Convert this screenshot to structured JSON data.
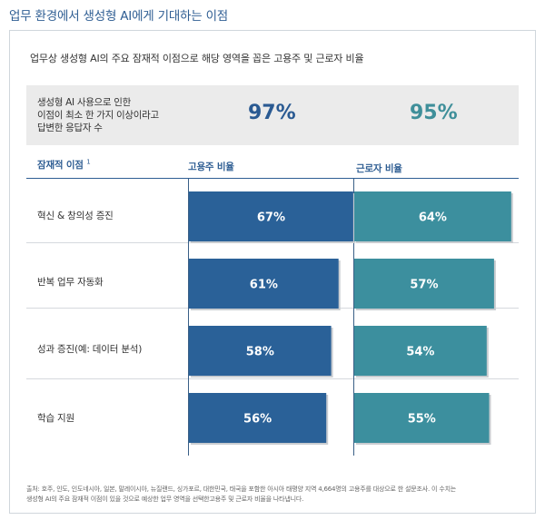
{
  "page_title": "업무 환경에서 생성형 AI에게 기대하는 이점",
  "colors": {
    "employer": "#2a6198",
    "worker": "#3c8f9e",
    "title": "#2f5e93"
  },
  "chart_data": {
    "type": "bar",
    "orientation": "horizontal",
    "title": "업무상 생성형 AI의 주요 잠재적 이점으로 해당 영역을 꼽은 고용주 및 근로자 비율",
    "summary": {
      "label": "생성형 AI 사용으로 인한 이점이 최소 한 가지 이상이라고 답변한 응답자 수",
      "label_lines": [
        "생성형 AI 사용으로 인한",
        "이점이 최소 한 가지 이상이라고",
        "답변한 응답자 수"
      ],
      "employer_value": "97%",
      "worker_value": "95%"
    },
    "category_header": "잠재적 이점",
    "category_header_note": "1",
    "categories": [
      "혁신 & 창의성 증진",
      "반복 업무 자동화",
      "성과 증진(예: 데이터 분석)",
      "학습 지원"
    ],
    "series": [
      {
        "name": "고용주 비율",
        "values": [
          67,
          61,
          58,
          56
        ],
        "labels": [
          "67%",
          "61%",
          "58%",
          "56%"
        ]
      },
      {
        "name": "근로자 비율",
        "values": [
          64,
          57,
          54,
          55
        ],
        "labels": [
          "64%",
          "57%",
          "54%",
          "55%"
        ]
      }
    ],
    "unit": "%"
  },
  "source_note": "출처: 호주, 인도, 인도네시아, 일본, 말레이시아, 뉴질랜드, 싱가포르, 대한민국, 태국을 포함한 아시아 태평양 지역 4,664명의 고용주를 대상으로 한 설문조사. 이 수치는 생성형 AI의 주요 잠재적 이점이 있을 것으로 예상한 업무 영역을 선택한고용주 및 근로자 비율을 나타냅니다."
}
